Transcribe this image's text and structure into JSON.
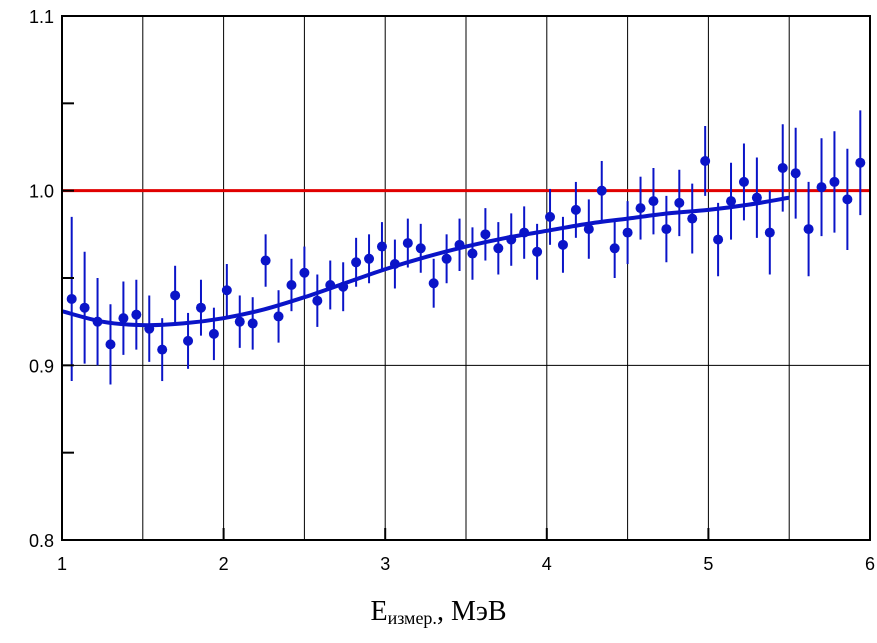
{
  "chart_data": {
    "type": "scatter",
    "title": "",
    "xlabel": {
      "main": "E",
      "subscript": "измер.",
      "suffix": ", МэВ"
    },
    "ylabel": "",
    "xlim": [
      1,
      6
    ],
    "ylim": [
      0.8,
      1.1
    ],
    "x_ticks": [
      1,
      2,
      3,
      4,
      5,
      6
    ],
    "x_tick_labels": [
      "1",
      "2",
      "3",
      "4",
      "5",
      "6"
    ],
    "y_ticks": [
      0.8,
      0.9,
      1.0,
      1.1
    ],
    "y_tick_labels": [
      "0.8",
      "0.9",
      "1.0",
      "1.1"
    ],
    "y_minor_ticks": [
      0.85,
      0.95,
      1.05
    ],
    "grid": true,
    "reference_line": {
      "y": 1.0,
      "color": "#e00000"
    },
    "series": [
      {
        "kind": "points_with_errorbars",
        "color": "#0a14c8",
        "x": [
          1.06,
          1.14,
          1.22,
          1.3,
          1.38,
          1.46,
          1.54,
          1.62,
          1.7,
          1.78,
          1.86,
          1.94,
          2.02,
          2.1,
          2.18,
          2.26,
          2.34,
          2.42,
          2.5,
          2.58,
          2.66,
          2.74,
          2.82,
          2.9,
          2.98,
          3.06,
          3.14,
          3.22,
          3.3,
          3.38,
          3.46,
          3.54,
          3.62,
          3.7,
          3.78,
          3.86,
          3.94,
          4.02,
          4.1,
          4.18,
          4.26,
          4.34,
          4.42,
          4.5,
          4.58,
          4.66,
          4.74,
          4.82,
          4.9,
          4.98,
          5.06,
          5.14,
          5.22,
          5.3,
          5.38,
          5.46,
          5.54,
          5.62,
          5.7,
          5.78,
          5.86,
          5.94
        ],
        "y": [
          0.938,
          0.933,
          0.925,
          0.912,
          0.927,
          0.929,
          0.921,
          0.909,
          0.94,
          0.914,
          0.933,
          0.918,
          0.943,
          0.925,
          0.924,
          0.96,
          0.928,
          0.946,
          0.953,
          0.937,
          0.946,
          0.945,
          0.959,
          0.961,
          0.968,
          0.958,
          0.97,
          0.967,
          0.947,
          0.961,
          0.969,
          0.964,
          0.975,
          0.967,
          0.972,
          0.976,
          0.965,
          0.985,
          0.969,
          0.989,
          0.978,
          1.0,
          0.967,
          0.976,
          0.99,
          0.994,
          0.978,
          0.993,
          0.984,
          1.017,
          0.972,
          0.994,
          1.005,
          0.996,
          0.976,
          1.013,
          1.01,
          0.978,
          1.002,
          1.005,
          0.995,
          1.016
        ],
        "err": [
          0.047,
          0.032,
          0.025,
          0.023,
          0.021,
          0.02,
          0.019,
          0.018,
          0.017,
          0.016,
          0.016,
          0.015,
          0.015,
          0.015,
          0.015,
          0.015,
          0.015,
          0.015,
          0.015,
          0.015,
          0.014,
          0.014,
          0.014,
          0.014,
          0.014,
          0.014,
          0.014,
          0.014,
          0.014,
          0.014,
          0.015,
          0.015,
          0.015,
          0.015,
          0.015,
          0.015,
          0.016,
          0.016,
          0.016,
          0.016,
          0.017,
          0.017,
          0.017,
          0.018,
          0.018,
          0.019,
          0.019,
          0.019,
          0.02,
          0.02,
          0.021,
          0.022,
          0.022,
          0.023,
          0.024,
          0.025,
          0.026,
          0.027,
          0.028,
          0.029,
          0.029,
          0.03
        ]
      },
      {
        "kind": "fit_curve",
        "color": "#0a14c8",
        "x": [
          1.0,
          1.25,
          1.5,
          1.75,
          2.0,
          2.25,
          2.5,
          2.75,
          3.0,
          3.25,
          3.5,
          3.75,
          4.0,
          4.25,
          4.5,
          4.75,
          5.0,
          5.25,
          5.5
        ],
        "y": [
          0.931,
          0.925,
          0.923,
          0.924,
          0.927,
          0.932,
          0.939,
          0.947,
          0.955,
          0.962,
          0.968,
          0.973,
          0.977,
          0.981,
          0.984,
          0.987,
          0.989,
          0.992,
          0.996
        ]
      }
    ]
  }
}
